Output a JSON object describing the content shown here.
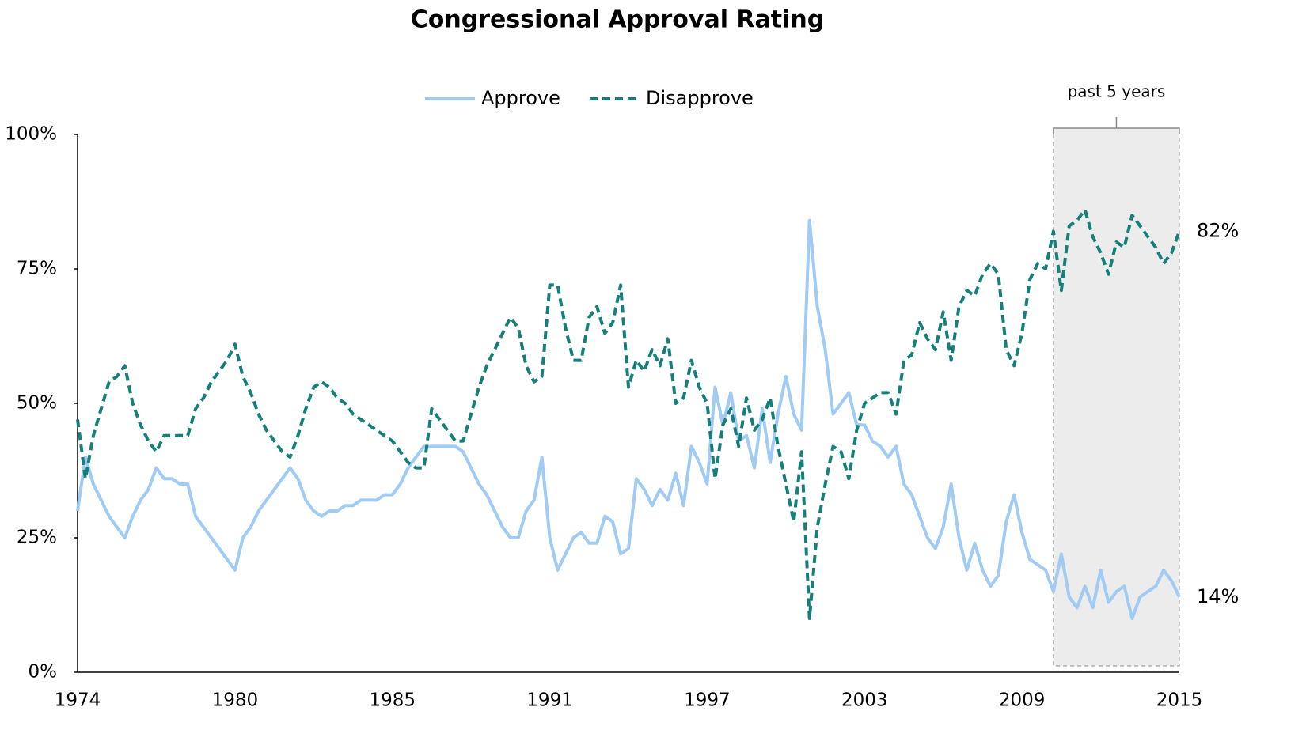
{
  "chart_data": {
    "type": "line",
    "title": "Congressional Approval Rating",
    "categories": [
      "1974",
      null,
      null,
      null,
      null,
      null,
      null,
      null,
      null,
      null,
      null,
      null,
      null,
      null,
      null,
      null,
      null,
      null,
      null,
      null,
      "1980",
      null,
      null,
      null,
      null,
      null,
      null,
      null,
      null,
      null,
      null,
      null,
      null,
      null,
      null,
      null,
      null,
      null,
      null,
      null,
      "1985",
      null,
      null,
      null,
      null,
      null,
      null,
      null,
      null,
      null,
      null,
      null,
      null,
      null,
      null,
      null,
      null,
      null,
      null,
      null,
      "1991",
      null,
      null,
      null,
      null,
      null,
      null,
      null,
      null,
      null,
      null,
      null,
      null,
      null,
      null,
      null,
      null,
      null,
      null,
      null,
      "1997",
      null,
      null,
      null,
      null,
      null,
      null,
      null,
      null,
      null,
      null,
      null,
      null,
      null,
      null,
      null,
      null,
      null,
      null,
      null,
      "2003",
      null,
      null,
      null,
      null,
      null,
      null,
      null,
      null,
      null,
      null,
      null,
      null,
      null,
      null,
      null,
      null,
      null,
      null,
      null,
      "2009",
      null,
      null,
      null,
      null,
      null,
      null,
      null,
      null,
      null,
      null,
      null,
      null,
      null,
      null,
      null,
      null,
      null,
      null,
      null,
      "2015"
    ],
    "series": [
      {
        "name": "Approve",
        "color": "#9fcbf5",
        "dashed": false,
        "end_label": "14%",
        "values": [
          30,
          40,
          35,
          32,
          29,
          27,
          25,
          29,
          32,
          34,
          38,
          36,
          36,
          35,
          35,
          29,
          27,
          25,
          23,
          21,
          19,
          25,
          27,
          30,
          32,
          34,
          36,
          38,
          36,
          32,
          30,
          29,
          30,
          30,
          31,
          31,
          32,
          32,
          32,
          33,
          33,
          35,
          38,
          40,
          42,
          42,
          42,
          42,
          42,
          41,
          38,
          35,
          33,
          30,
          27,
          25,
          25,
          30,
          32,
          40,
          25,
          19,
          22,
          25,
          26,
          24,
          24,
          29,
          28,
          22,
          23,
          36,
          34,
          31,
          34,
          32,
          37,
          31,
          42,
          39,
          35,
          53,
          46,
          52,
          43,
          44,
          38,
          49,
          39,
          48,
          55,
          48,
          45,
          84,
          68,
          60,
          48,
          50,
          52,
          46,
          46,
          43,
          42,
          40,
          42,
          35,
          33,
          29,
          25,
          23,
          27,
          35,
          25,
          19,
          24,
          19,
          16,
          18,
          28,
          33,
          26,
          21,
          20,
          19,
          15,
          22,
          14,
          12,
          16,
          12,
          19,
          13,
          15,
          16,
          10,
          14,
          15,
          16,
          19,
          17,
          14
        ]
      },
      {
        "name": "Disapprove",
        "color": "#157f79",
        "dashed": true,
        "end_label": "82%",
        "values": [
          47,
          36,
          44,
          49,
          54,
          55,
          57,
          50,
          46,
          43,
          41,
          44,
          44,
          44,
          44,
          49,
          51,
          54,
          56,
          58,
          61,
          55,
          52,
          48,
          45,
          43,
          41,
          40,
          44,
          49,
          53,
          54,
          53,
          51,
          50,
          48,
          47,
          46,
          45,
          44,
          43,
          41,
          39,
          38,
          38,
          49,
          47,
          45,
          43,
          43,
          48,
          53,
          57,
          60,
          63,
          66,
          64,
          57,
          54,
          55,
          72,
          72,
          64,
          58,
          58,
          66,
          68,
          63,
          65,
          72,
          53,
          58,
          56,
          60,
          57,
          62,
          50,
          51,
          58,
          53,
          50,
          36,
          46,
          49,
          42,
          51,
          45,
          47,
          51,
          42,
          35,
          28,
          41,
          10,
          27,
          35,
          42,
          41,
          36,
          45,
          50,
          51,
          52,
          52,
          48,
          58,
          59,
          65,
          62,
          60,
          67,
          58,
          68,
          71,
          70,
          74,
          76,
          74,
          60,
          57,
          63,
          73,
          76,
          75,
          82,
          71,
          83,
          84,
          86,
          81,
          78,
          74,
          80,
          79,
          85,
          83,
          81,
          79,
          76,
          78,
          82
        ]
      }
    ],
    "ylim": [
      0,
      100
    ],
    "yticks": [
      {
        "value": 0,
        "label": "0%"
      },
      {
        "value": 25,
        "label": "25%"
      },
      {
        "value": 50,
        "label": "50%"
      },
      {
        "value": 75,
        "label": "75%"
      },
      {
        "value": 100,
        "label": "100%"
      }
    ],
    "grid": false,
    "legend": "top",
    "highlight": {
      "label": "past 5 years",
      "start": 124,
      "end": 140
    }
  }
}
